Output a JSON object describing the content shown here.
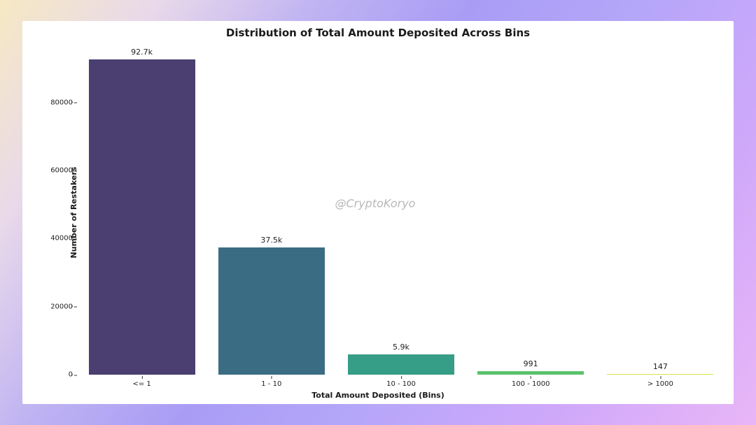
{
  "chart": {
    "type": "bar",
    "title": "Distribution of Total Amount Deposited Across Bins",
    "title_fontsize": 15,
    "xlabel": "Total Amount Deposited (Bins)",
    "ylabel": "Number of Restakers",
    "axis_label_fontsize": 11,
    "tick_fontsize": 10,
    "value_label_fontsize": 11,
    "background_color": "#ffffff",
    "watermark": "@CryptoKoryo",
    "watermark_color": "#b8b8b8",
    "watermark_fontsize": 16,
    "ylim": [
      0,
      97000
    ],
    "yticks": [
      0,
      20000,
      40000,
      60000,
      80000
    ],
    "categories": [
      "<= 1",
      "1 - 10",
      "10 - 100",
      "100 - 1000",
      "> 1000"
    ],
    "values": [
      92700,
      37500,
      5900,
      991,
      147
    ],
    "value_labels": [
      "92.7k",
      "37.5k",
      "5.9k",
      "991",
      "147"
    ],
    "bar_colors": [
      "#4a3f70",
      "#3a6d84",
      "#369d86",
      "#5cc26b",
      "#d7e648"
    ],
    "bar_width": 0.82,
    "frame_border_color": "#ffffff"
  }
}
